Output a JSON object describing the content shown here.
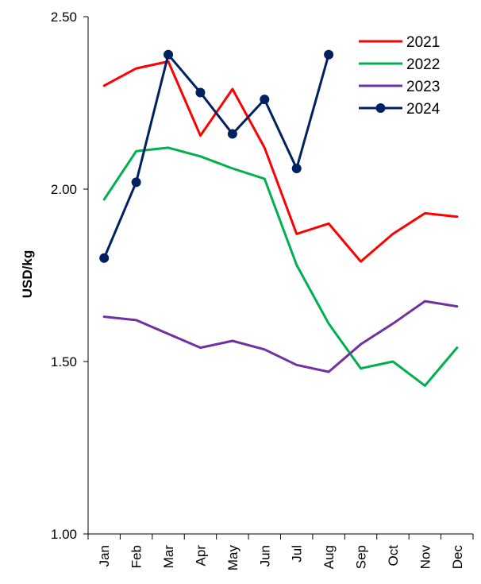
{
  "chart_data": {
    "type": "line",
    "title": "",
    "xlabel": "",
    "ylabel": "USD/kg",
    "ylim": [
      1.0,
      2.5
    ],
    "yticks": [
      "1.00",
      "1.50",
      "2.00",
      "2.50"
    ],
    "grid": false,
    "legend_position": "top-right",
    "categories": [
      "Jan",
      "Feb",
      "Mar",
      "Apr",
      "May",
      "Jun",
      "Jul",
      "Aug",
      "Sep",
      "Oct",
      "Nov",
      "Dec"
    ],
    "series": [
      {
        "name": "2021",
        "color": "#ff0000",
        "markers": false,
        "values": [
          2.3,
          2.35,
          2.37,
          2.155,
          2.29,
          2.12,
          1.87,
          1.9,
          1.79,
          1.87,
          1.93,
          1.92
        ]
      },
      {
        "name": "2022",
        "color": "#00b050",
        "markers": false,
        "values": [
          1.97,
          2.11,
          2.12,
          2.095,
          2.06,
          2.03,
          1.78,
          1.61,
          1.48,
          1.5,
          1.43,
          1.54
        ]
      },
      {
        "name": "2023",
        "color": "#7030a0",
        "markers": false,
        "values": [
          1.63,
          1.62,
          1.58,
          1.54,
          1.56,
          1.535,
          1.49,
          1.47,
          1.55,
          1.61,
          1.675,
          1.66
        ]
      },
      {
        "name": "2024",
        "color": "#002060",
        "markers": true,
        "values": [
          1.8,
          2.02,
          2.39,
          2.28,
          2.16,
          2.26,
          2.06,
          2.39,
          null,
          null,
          null,
          null
        ]
      }
    ]
  }
}
